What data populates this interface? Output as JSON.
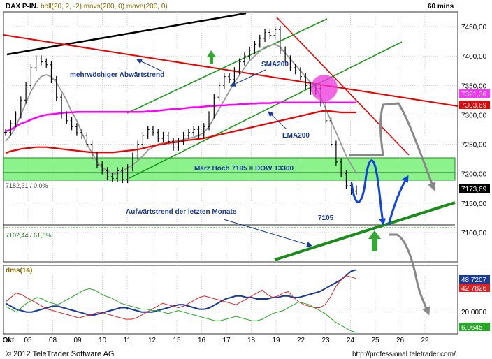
{
  "header": {
    "instrument": "DAX P-IN.",
    "indicators": "boll(20, 2, -2) movs(200, 0) move(200, 0)",
    "interval": "60 mins"
  },
  "footer": {
    "copyright": "© 2012 TeleTrader Software AG",
    "url": "http://professional.teletrader.com/"
  },
  "colors": {
    "price": "#000000",
    "sma200": "#ff00ff",
    "ema200": "#ee0000",
    "boll": "#999999",
    "trend_red": "#ee0000",
    "trend_green": "#1a8c1a",
    "trend_black": "#000000",
    "zone": "#66ee66",
    "projection_blue": "#1144dd",
    "projection_gray": "#888888",
    "dms_blue": "#1a3a99",
    "dms_red": "#dd2222",
    "dms_green": "#22aa22"
  },
  "chart_data": [
    {
      "type": "line",
      "panel": "price",
      "ylim": [
        7050,
        7475
      ],
      "yticks": [
        "7450,00",
        "7400,00",
        "7350,00",
        "7300,00",
        "7250,00",
        "7200,00",
        "7150,00",
        "7100,00"
      ],
      "xticks": [
        "Okt",
        "05",
        "08",
        "09",
        "10",
        "11",
        "12",
        "15",
        "16",
        "17",
        "18",
        "19",
        "22",
        "23",
        "24",
        "25",
        "26",
        "29"
      ],
      "price_tags": {
        "sma": "7321,36",
        "ema": "7303,69",
        "last": "7173,69"
      },
      "series": [
        {
          "key": "price",
          "values": [
            7270,
            7285,
            7300,
            7325,
            7350,
            7380,
            7395,
            7390,
            7385,
            7360,
            7330,
            7300,
            7290,
            7280,
            7270,
            7265,
            7250,
            7230,
            7215,
            7205,
            7195,
            7192,
            7205,
            7190,
            7210,
            7230,
            7250,
            7265,
            7275,
            7270,
            7260,
            7265,
            7255,
            7245,
            7255,
            7265,
            7270,
            7275,
            7265,
            7280,
            7300,
            7330,
            7350,
            7365,
            7360,
            7375,
            7390,
            7400,
            7410,
            7420,
            7430,
            7440,
            7435,
            7445,
            7410,
            7395,
            7380,
            7375,
            7365,
            7350,
            7340,
            7345,
            7320,
            7290,
            7250,
            7220,
            7200,
            7180,
            7170,
            7174
          ]
        },
        {
          "key": "sma200",
          "values": [
            7272,
            7275,
            7280,
            7285,
            7288,
            7292,
            7295,
            7298,
            7300,
            7301,
            7302,
            7303,
            7304,
            7304,
            7305,
            7305,
            7305,
            7305,
            7305,
            7305,
            7305,
            7305,
            7305,
            7305,
            7305,
            7305,
            7305,
            7305,
            7306,
            7306,
            7307,
            7308,
            7309,
            7310,
            7310,
            7311,
            7312,
            7313,
            7313,
            7314,
            7315,
            7315,
            7316,
            7316,
            7317,
            7317,
            7318,
            7318,
            7319,
            7319,
            7320,
            7320,
            7320,
            7321,
            7321,
            7321,
            7321,
            7321,
            7321,
            7321,
            7321,
            7321,
            7321,
            7321,
            7321,
            7321,
            7321,
            7321,
            7321,
            7321
          ]
        },
        {
          "key": "ema200",
          "values": [
            7235,
            7238,
            7240,
            7242,
            7243,
            7244,
            7245,
            7245,
            7245,
            7244,
            7243,
            7242,
            7241,
            7240,
            7239,
            7238,
            7237,
            7236,
            7236,
            7236,
            7236,
            7236,
            7237,
            7238,
            7239,
            7240,
            7241,
            7243,
            7245,
            7247,
            7249,
            7250,
            7252,
            7253,
            7254,
            7256,
            7257,
            7258,
            7259,
            7260,
            7262,
            7264,
            7266,
            7268,
            7270,
            7272,
            7274,
            7276,
            7278,
            7280,
            7282,
            7284,
            7286,
            7288,
            7290,
            7292,
            7294,
            7296,
            7298,
            7300,
            7302,
            7304,
            7306,
            7307,
            7306,
            7305,
            7304,
            7304,
            7304,
            7304
          ]
        },
        {
          "key": "boll_mid",
          "values": [
            7255,
            7265,
            7280,
            7300,
            7320,
            7340,
            7355,
            7365,
            7368,
            7365,
            7355,
            7340,
            7325,
            7305,
            7290,
            7270,
            7250,
            7235,
            7220,
            7210,
            7205,
            7200,
            7200,
            7205,
            7210,
            7215,
            7222,
            7230,
            7240,
            7245,
            7250,
            7252,
            7254,
            7255,
            7256,
            7258,
            7260,
            7262,
            7265,
            7270,
            7280,
            7295,
            7310,
            7325,
            7340,
            7355,
            7368,
            7380,
            7392,
            7400,
            7408,
            7415,
            7418,
            7420,
            7415,
            7405,
            7395,
            7385,
            7375,
            7365,
            7355,
            7345,
            7330,
            7310,
            7290,
            7270,
            7250,
            7230,
            7215,
            7200
          ]
        }
      ],
      "annotations": [
        "mehrwöchiger Abwärtstrend",
        "SMA200",
        "EMA200",
        "März Hoch 7195 = DOW 13300",
        "Aufwärtstrend der letzten Monate",
        "7105",
        "7182,31 / 0,0%",
        "7102,44 / 61,8%"
      ]
    },
    {
      "type": "line",
      "panel": "dms",
      "title": "dms(14)",
      "ylim": [
        5,
        52
      ],
      "yticks": [
        "20,0000"
      ],
      "value_tags": {
        "blue": "48,7207",
        "red": "42,7826",
        "green": "6,0645"
      },
      "series": [
        {
          "key": "adx",
          "values": [
            26,
            24,
            22,
            21,
            20,
            20,
            21,
            22,
            23,
            24,
            24,
            23,
            22,
            21,
            20,
            19,
            18,
            18,
            19,
            20,
            21,
            22,
            23,
            23,
            22,
            21,
            20,
            20,
            20,
            21,
            22,
            23,
            24,
            25,
            25,
            24,
            23,
            22,
            22,
            23,
            25,
            27,
            29,
            30,
            31,
            31,
            30,
            30,
            29,
            29,
            29,
            30,
            30,
            31,
            31,
            30,
            30,
            31,
            32,
            33,
            34,
            36,
            38,
            40,
            42,
            45,
            48,
            49
          ]
        },
        {
          "key": "di_plus",
          "values": [
            27,
            30,
            33,
            32,
            30,
            28,
            26,
            24,
            22,
            21,
            20,
            19,
            18,
            17,
            16,
            17,
            18,
            19,
            20,
            19,
            18,
            17,
            16,
            15,
            15,
            16,
            18,
            20,
            22,
            24,
            26,
            25,
            24,
            23,
            24,
            26,
            28,
            30,
            31,
            30,
            29,
            28,
            27,
            26,
            25,
            27,
            29,
            31,
            33,
            35,
            32,
            30,
            31,
            33,
            34,
            30,
            27,
            25,
            24,
            23,
            23,
            25,
            30,
            37,
            42,
            45,
            44,
            43
          ]
        },
        {
          "key": "di_minus",
          "values": [
            24,
            22,
            20,
            23,
            26,
            28,
            30,
            29,
            27,
            26,
            25,
            27,
            29,
            31,
            33,
            35,
            36,
            35,
            33,
            31,
            30,
            28,
            26,
            25,
            24,
            23,
            22,
            22,
            21,
            21,
            20,
            19,
            20,
            21,
            20,
            19,
            18,
            17,
            16,
            15,
            14,
            14,
            15,
            16,
            17,
            16,
            15,
            14,
            14,
            15,
            17,
            19,
            20,
            21,
            23,
            25,
            27,
            26,
            25,
            23,
            21,
            19,
            16,
            13,
            11,
            9,
            7,
            6
          ]
        }
      ]
    }
  ]
}
